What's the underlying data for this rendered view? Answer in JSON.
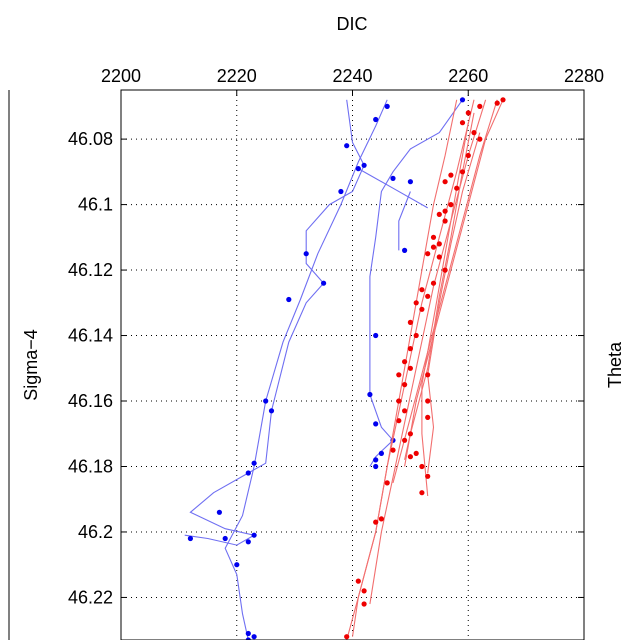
{
  "chart_data": {
    "type": "line",
    "title": "DIC",
    "xlabel": "DIC",
    "ylabel": "Sigma−4",
    "x_axis_position": "top",
    "y_reversed": true,
    "xlim": [
      2200,
      2280
    ],
    "ylim": [
      46.065,
      46.233
    ],
    "xticks": [
      2200,
      2220,
      2240,
      2260,
      2280
    ],
    "xtick_labels": [
      "2200",
      "2220",
      "2240",
      "2260",
      "2280"
    ],
    "yticks": [
      46.08,
      46.1,
      46.12,
      46.14,
      46.16,
      46.18,
      46.2,
      46.22
    ],
    "ytick_labels": [
      "46.08",
      "46.1",
      "46.12",
      "46.14",
      "46.16",
      "46.18",
      "46.2",
      "46.22"
    ],
    "grid": "dotted",
    "right_partial_label": "Theta",
    "colors": {
      "blue_line": "#6f6ff2",
      "blue_points": "#0000ee",
      "red_line": "#f26f6f",
      "red_points": "#ee0000",
      "grid": "#000000"
    },
    "series": [
      {
        "color": "blue",
        "lines": [
          [
            [
              2246,
              46.068
            ],
            [
              2244,
              46.076
            ],
            [
              2241,
              46.087
            ],
            [
              2238,
              46.1
            ],
            [
              2234,
              46.115
            ],
            [
              2231,
              46.129
            ],
            [
              2228,
              46.142
            ],
            [
              2225,
              46.16
            ],
            [
              2223,
              46.18
            ],
            [
              2221,
              46.195
            ],
            [
              2218,
              46.205
            ],
            [
              2220,
              46.213
            ],
            [
              2221,
              46.225
            ],
            [
              2222,
              46.233
            ]
          ],
          [
            [
              2239,
              46.068
            ],
            [
              2240,
              46.081
            ],
            [
              2242,
              46.088
            ],
            [
              2240,
              46.096
            ],
            [
              2236,
              46.1
            ],
            [
              2232,
              46.108
            ],
            [
              2232,
              46.118
            ],
            [
              2235,
              46.124
            ],
            [
              2232,
              46.13
            ],
            [
              2229,
              46.142
            ],
            [
              2226,
              46.163
            ],
            [
              2225,
              46.179
            ],
            [
              2222,
              46.182
            ],
            [
              2216,
              46.188
            ],
            [
              2212,
              46.194
            ],
            [
              2218,
              46.199
            ],
            [
              2223,
              46.201
            ],
            [
              2220,
              46.204
            ],
            [
              2215,
              46.202
            ],
            [
              2211,
              46.201
            ]
          ],
          [
            [
              2259,
              46.068
            ],
            [
              2255,
              46.078
            ],
            [
              2250,
              46.083
            ],
            [
              2247,
              46.09
            ],
            [
              2245,
              46.096
            ],
            [
              2244,
              46.11
            ],
            [
              2243,
              46.122
            ],
            [
              2243,
              46.14
            ],
            [
              2243,
              46.158
            ],
            [
              2245,
              46.168
            ],
            [
              2247,
              46.172
            ],
            [
              2244,
              46.177
            ],
            [
              2243,
              46.18
            ]
          ],
          [
            [
              2241,
              46.089
            ],
            [
              2247,
              46.095
            ],
            [
              2253,
              46.101
            ]
          ],
          [
            [
              2250,
              46.096
            ],
            [
              2248,
              46.105
            ],
            [
              2248,
              46.114
            ]
          ]
        ],
        "points": [
          [
            2246,
            46.07
          ],
          [
            2244,
            46.074
          ],
          [
            2239,
            46.082
          ],
          [
            2242,
            46.088
          ],
          [
            2241,
            46.089
          ],
          [
            2238,
            46.096
          ],
          [
            2232,
            46.115
          ],
          [
            2235,
            46.124
          ],
          [
            2229,
            46.129
          ],
          [
            2225,
            46.16
          ],
          [
            2226,
            46.163
          ],
          [
            2223,
            46.179
          ],
          [
            2222,
            46.182
          ],
          [
            2217,
            46.194
          ],
          [
            2212,
            46.202
          ],
          [
            2218,
            46.202
          ],
          [
            2223,
            46.201
          ],
          [
            2222,
            46.203
          ],
          [
            2220,
            46.21
          ],
          [
            2222,
            46.233
          ],
          [
            2223,
            46.232
          ],
          [
            2222,
            46.231
          ],
          [
            2259,
            46.068
          ],
          [
            2247,
            46.092
          ],
          [
            2250,
            46.093
          ],
          [
            2249,
            46.114
          ],
          [
            2244,
            46.14
          ],
          [
            2243,
            46.158
          ],
          [
            2244,
            46.167
          ],
          [
            2247,
            46.172
          ],
          [
            2245,
            46.176
          ],
          [
            2244,
            46.178
          ],
          [
            2244,
            46.18
          ]
        ]
      },
      {
        "color": "red",
        "lines": [
          [
            [
              2258,
              46.068
            ],
            [
              2256,
              46.085
            ],
            [
              2254,
              46.1
            ],
            [
              2252,
              46.12
            ],
            [
              2250,
              46.14
            ],
            [
              2248,
              46.16
            ],
            [
              2246,
              46.18
            ],
            [
              2244,
              46.2
            ],
            [
              2241,
              46.22
            ],
            [
              2239,
              46.233
            ]
          ],
          [
            [
              2261,
              46.068
            ],
            [
              2258,
              46.09
            ],
            [
              2255,
              46.11
            ],
            [
              2252,
              46.13
            ],
            [
              2249,
              46.155
            ],
            [
              2246,
              46.18
            ],
            [
              2244,
              46.2
            ],
            [
              2241,
              46.22
            ],
            [
              2240,
              46.232
            ]
          ],
          [
            [
              2263,
              46.068
            ],
            [
              2260,
              46.085
            ],
            [
              2257,
              46.105
            ],
            [
              2254,
              46.125
            ],
            [
              2251,
              46.15
            ],
            [
              2248,
              46.175
            ],
            [
              2245,
              46.2
            ],
            [
              2243,
              46.222
            ]
          ],
          [
            [
              2265,
              46.068
            ],
            [
              2262,
              46.085
            ],
            [
              2259,
              46.105
            ],
            [
              2256,
              46.125
            ],
            [
              2253,
              46.145
            ],
            [
              2250,
              46.165
            ],
            [
              2247,
              46.185
            ]
          ],
          [
            [
              2266,
              46.068
            ],
            [
              2263,
              46.08
            ],
            [
              2260,
              46.1
            ],
            [
              2257,
              46.12
            ],
            [
              2254,
              46.14
            ],
            [
              2251,
              46.16
            ],
            [
              2249,
              46.18
            ]
          ],
          [
            [
              2260,
              46.075
            ],
            [
              2258,
              46.095
            ],
            [
              2256,
              46.115
            ],
            [
              2254,
              46.135
            ],
            [
              2252,
              46.155
            ],
            [
              2252,
              46.17
            ],
            [
              2253,
              46.189
            ]
          ],
          [
            [
              2262,
              46.078
            ],
            [
              2259,
              46.096
            ],
            [
              2257,
              46.112
            ],
            [
              2255,
              46.13
            ],
            [
              2253,
              46.152
            ],
            [
              2254,
              46.168
            ],
            [
              2253,
              46.182
            ]
          ],
          [
            [
              2261,
              46.072
            ],
            [
              2259,
              46.09
            ],
            [
              2257,
              46.11
            ],
            [
              2255,
              46.128
            ],
            [
              2253,
              46.15
            ],
            [
              2250,
              46.17
            ],
            [
              2249,
              46.178
            ]
          ]
        ],
        "points": [
          [
            2266,
            46.068
          ],
          [
            2265,
            46.069
          ],
          [
            2262,
            46.07
          ],
          [
            2260,
            46.072
          ],
          [
            2259,
            46.075
          ],
          [
            2261,
            46.078
          ],
          [
            2262,
            46.08
          ],
          [
            2260,
            46.085
          ],
          [
            2259,
            46.09
          ],
          [
            2257,
            46.091
          ],
          [
            2256,
            46.093
          ],
          [
            2258,
            46.095
          ],
          [
            2257,
            46.1
          ],
          [
            2256,
            46.102
          ],
          [
            2255,
            46.103
          ],
          [
            2256,
            46.105
          ],
          [
            2254,
            46.11
          ],
          [
            2255,
            46.112
          ],
          [
            2254,
            46.113
          ],
          [
            2253,
            46.115
          ],
          [
            2255,
            46.116
          ],
          [
            2256,
            46.12
          ],
          [
            2254,
            46.124
          ],
          [
            2252,
            46.126
          ],
          [
            2253,
            46.128
          ],
          [
            2251,
            46.13
          ],
          [
            2252,
            46.132
          ],
          [
            2250,
            46.136
          ],
          [
            2251,
            46.14
          ],
          [
            2250,
            46.144
          ],
          [
            2249,
            46.148
          ],
          [
            2250,
            46.15
          ],
          [
            2248,
            46.152
          ],
          [
            2249,
            46.155
          ],
          [
            2253,
            46.152
          ],
          [
            2253,
            46.16
          ],
          [
            2253,
            46.165
          ],
          [
            2248,
            46.16
          ],
          [
            2249,
            46.163
          ],
          [
            2248,
            46.166
          ],
          [
            2250,
            46.17
          ],
          [
            2249,
            46.172
          ],
          [
            2251,
            46.176
          ],
          [
            2250,
            46.177
          ],
          [
            2252,
            46.18
          ],
          [
            2253,
            46.183
          ],
          [
            2252,
            46.188
          ],
          [
            2247,
            46.175
          ],
          [
            2246,
            46.185
          ],
          [
            2245,
            46.196
          ],
          [
            2244,
            46.197
          ],
          [
            2241,
            46.215
          ],
          [
            2242,
            46.218
          ],
          [
            2242,
            46.222
          ],
          [
            2239,
            46.232
          ]
        ]
      }
    ]
  }
}
